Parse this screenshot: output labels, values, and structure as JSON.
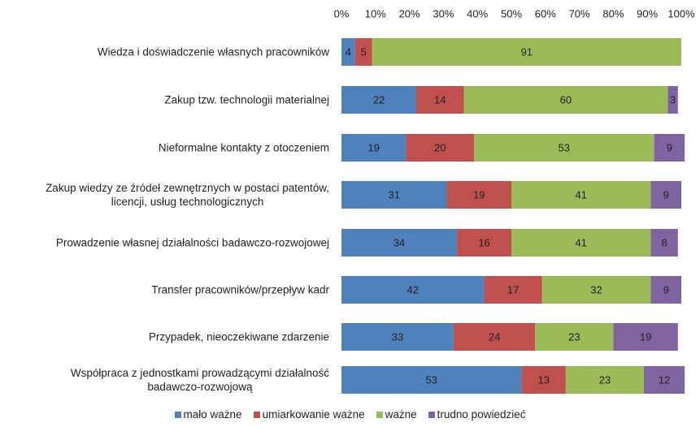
{
  "chart_data": {
    "type": "bar",
    "orientation": "horizontal",
    "stacked": true,
    "categories": [
      "Wiedza i doświadczenie własnych pracowników",
      "Zakup tzw. technologii materialnej",
      "Nieformalne kontakty z otoczeniem",
      "Zakup wiedzy ze źródeł zewnętrznych w postaci patentów,\nlicencji, usług technologicznych",
      "Prowadzenie własnej działalności badawczo-rozwojowej",
      "Transfer pracowników/przepływ kadr",
      "Przypadek, nieoczekiwane zdarzenie",
      "Współpraca z jednostkami prowadzącymi działalność\nbadawczo-rozwojową"
    ],
    "series": [
      {
        "name": "mało ważne",
        "color": "#4f81bd",
        "values": [
          4,
          22,
          19,
          31,
          34,
          42,
          33,
          53
        ]
      },
      {
        "name": "umiarkowanie ważne",
        "color": "#c0504d",
        "values": [
          5,
          14,
          20,
          19,
          16,
          17,
          24,
          13
        ]
      },
      {
        "name": "ważne",
        "color": "#9bbb59",
        "values": [
          91,
          60,
          53,
          41,
          41,
          32,
          23,
          23
        ]
      },
      {
        "name": "trudno powiedzieć",
        "color": "#8064a2",
        "values": [
          null,
          3,
          9,
          9,
          8,
          9,
          19,
          12
        ]
      }
    ],
    "xlim": [
      0,
      100
    ],
    "xticks": [
      {
        "value": 0,
        "label": "0%"
      },
      {
        "value": 10,
        "label": "10%"
      },
      {
        "value": 20,
        "label": "20%"
      },
      {
        "value": 30,
        "label": "30%"
      },
      {
        "value": 40,
        "label": "40%"
      },
      {
        "value": 50,
        "label": "50%"
      },
      {
        "value": 60,
        "label": "60%"
      },
      {
        "value": 70,
        "label": "70%"
      },
      {
        "value": 80,
        "label": "80%"
      },
      {
        "value": 90,
        "label": "90%"
      },
      {
        "value": 100,
        "label": "100%"
      }
    ],
    "legend": "bottom"
  }
}
